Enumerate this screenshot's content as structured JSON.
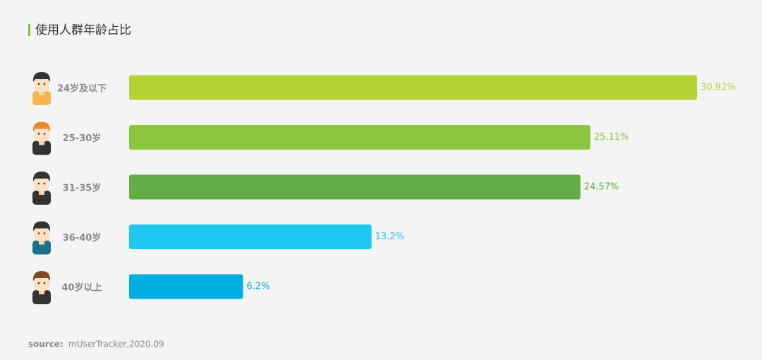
{
  "chart_data": {
    "type": "bar",
    "orientation": "horizontal",
    "title": "使用人群年龄占比",
    "categories": [
      "24岁及以下",
      "25-30岁",
      "31-35岁",
      "36-40岁",
      "40岁以上"
    ],
    "values": [
      30.92,
      25.11,
      24.57,
      13.2,
      6.2
    ],
    "value_labels": [
      "30.92%",
      "25.11%",
      "24.57%",
      "13.2%",
      "6.2%"
    ],
    "colors": [
      "#b3d334",
      "#8cc63f",
      "#62ad45",
      "#1ec8f0",
      "#00aee0"
    ],
    "source_label": "source:",
    "source": "mUserTracker,2020.09"
  }
}
